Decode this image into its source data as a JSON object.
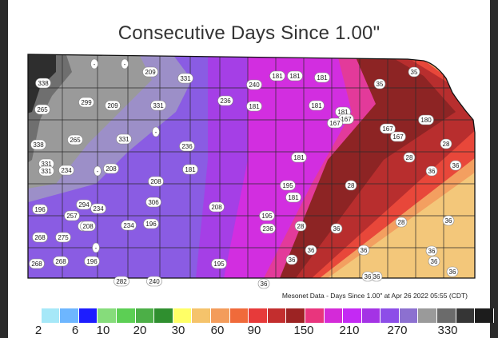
{
  "map": {
    "title": "Consecutive Days Since 1.00\"",
    "credit": "Mesonet Data - Days Since 1.00\" at Apr 26 2022 05:55 (CDT)",
    "county_labels": [
      "338",
      "-",
      "-",
      "209",
      "331",
      "240",
      "181",
      "181",
      "181",
      "35",
      "35",
      "265",
      "299",
      "209",
      "331",
      "236",
      "181",
      "181",
      "181",
      "167",
      "167",
      "180",
      "338",
      "265",
      "331",
      "-",
      "236",
      "181",
      "167",
      "167",
      "28",
      "331",
      "234",
      "-",
      "208",
      "208",
      "181",
      "28",
      "36",
      "36",
      "331",
      "208",
      "195",
      "181",
      "28",
      "196",
      "294",
      "234",
      "306",
      "208",
      "195",
      "28",
      "36",
      "28",
      "36",
      "257",
      "208",
      "234",
      "196",
      "236",
      "268",
      "275",
      "-",
      "36",
      "36",
      "36",
      "268",
      "268",
      "196",
      "195",
      "36",
      "36",
      "36",
      "282",
      "240",
      "36",
      "36",
      "36"
    ]
  },
  "legend": {
    "colors": [
      "#ffffff",
      "#a6e8f8",
      "#6db6ff",
      "#1d1dff",
      "#86dc7b",
      "#5ccf54",
      "#4caf47",
      "#2f8f2f",
      "#ffff66",
      "#f5c36b",
      "#f39c5b",
      "#f06a3a",
      "#e73a3a",
      "#c32e2e",
      "#9c2323",
      "#e9357d",
      "#d42ad8",
      "#c429f4",
      "#a433e5",
      "#8d4de8",
      "#8c70d0",
      "#9a9a9a",
      "#6b6b6b",
      "#353535",
      "#1c1c1c"
    ],
    "ticks": [
      "2",
      "6",
      "10",
      "20",
      "30",
      "60",
      "90",
      "150",
      "210",
      "270",
      "330"
    ]
  }
}
